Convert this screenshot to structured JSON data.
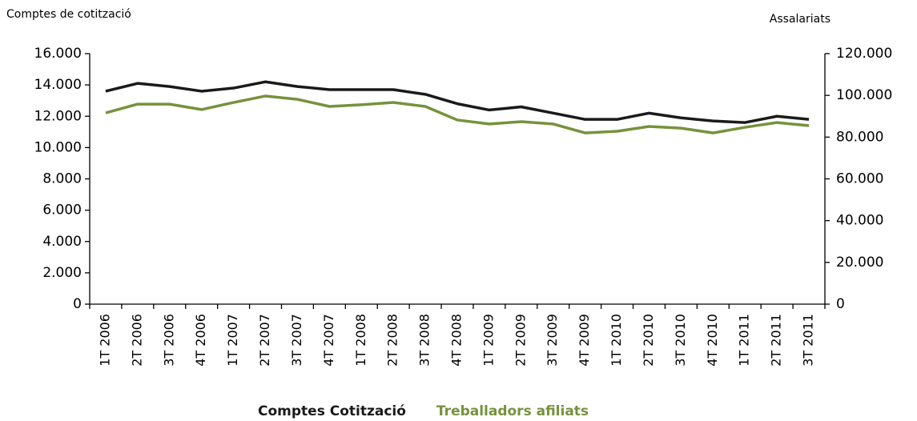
{
  "chart_data": {
    "type": "line",
    "y_label": "Comptes de cotització",
    "y2_label": "Assalariats",
    "categories": [
      "1T 2006",
      "2T 2006",
      "3T 2006",
      "4T 2006",
      "1T 2007",
      "2T 2007",
      "3T 2007",
      "4T 2007",
      "1T 2008",
      "2T 2008",
      "3T 2008",
      "4T 2008",
      "1T 2009",
      "2T 2009",
      "3T 2009",
      "4T 2009",
      "1T 2010",
      "2T 2010",
      "3T 2010",
      "4T 2010",
      "1T 2011",
      "2T 2011",
      "3T 2011"
    ],
    "series": [
      {
        "name": "Comptes Cotització",
        "color": "#1a1a1a",
        "axis": "y",
        "values": [
          13600,
          14100,
          13900,
          13600,
          13800,
          14200,
          13900,
          13700,
          13700,
          13700,
          13400,
          12800,
          12400,
          12600,
          12200,
          11800,
          11800,
          12200,
          11900,
          11700,
          11600,
          12000,
          11800
        ]
      },
      {
        "name": "Treballadors afiliats",
        "color": "#76923c",
        "axis": "y2",
        "values": [
          91600,
          95800,
          95800,
          93200,
          96600,
          99700,
          98100,
          94700,
          95500,
          96600,
          94700,
          88200,
          86300,
          87400,
          86300,
          82000,
          82800,
          85100,
          84300,
          82000,
          84700,
          87000,
          85500
        ]
      }
    ],
    "ylim": [
      0,
      16000
    ],
    "yticks": [
      0,
      {
        "value": 2000,
        "label": "2.000"
      },
      {
        "value": 4000,
        "label": "4.000"
      },
      {
        "value": 6000,
        "label": "6.000"
      },
      {
        "value": 8000,
        "label": "8.000"
      },
      {
        "value": 10000,
        "label": "10.000"
      },
      {
        "value": 12000,
        "label": "12.000"
      },
      {
        "value": 14000,
        "label": "14.000"
      },
      {
        "value": 16000,
        "label": "16.000"
      }
    ],
    "y2lim": [
      0,
      120000
    ],
    "y2ticks": [
      0,
      {
        "value": 20000,
        "label": "20.000"
      },
      {
        "value": 40000,
        "label": "40.000"
      },
      {
        "value": 60000,
        "label": "60.000"
      },
      {
        "value": 80000,
        "label": "80.000"
      },
      {
        "value": 100000,
        "label": "100.000"
      },
      {
        "value": 120000,
        "label": "120.000"
      }
    ],
    "grid": false,
    "legend": "bottom"
  }
}
